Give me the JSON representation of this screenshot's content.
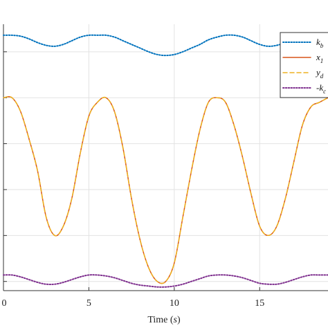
{
  "chart_data": {
    "type": "line",
    "title": "",
    "xlabel": "Time",
    "xlabel_unit": "s",
    "ylabel": "",
    "xlim": [
      0,
      19
    ],
    "ylim": [
      -1.1,
      1.8
    ],
    "x_ticks": [
      0,
      5,
      10,
      15
    ],
    "x_tick_labels": [
      "0",
      "5",
      "10",
      "15"
    ],
    "y_ticks": [
      -1,
      -0.5,
      0,
      0.5,
      1,
      1.5
    ],
    "grid": true,
    "legend_position": "top-right",
    "series": [
      {
        "name": "k_b",
        "label_main": "k",
        "label_sub": "b",
        "color": "#0072BD",
        "style": "dotted",
        "x": [
          0,
          0.5,
          1,
          1.5,
          2,
          2.5,
          3,
          3.5,
          4,
          4.5,
          5,
          5.5,
          6,
          6.5,
          7,
          7.5,
          8,
          8.5,
          9,
          9.5,
          10,
          10.5,
          11,
          11.5,
          12,
          12.5,
          13,
          13.5,
          14,
          14.5,
          15,
          15.5,
          16,
          16.5,
          17,
          17.5,
          18,
          18.5,
          19
        ],
        "values": [
          1.68,
          1.68,
          1.67,
          1.64,
          1.6,
          1.57,
          1.56,
          1.58,
          1.62,
          1.66,
          1.68,
          1.68,
          1.68,
          1.66,
          1.62,
          1.58,
          1.54,
          1.5,
          1.47,
          1.46,
          1.47,
          1.5,
          1.54,
          1.58,
          1.63,
          1.66,
          1.68,
          1.68,
          1.66,
          1.62,
          1.58,
          1.56,
          1.57,
          1.6,
          1.64,
          1.67,
          1.68,
          1.68,
          1.68
        ]
      },
      {
        "name": "x_1",
        "label_main": "x",
        "label_sub": "1",
        "color": "#D95319",
        "style": "solid",
        "x": [
          0,
          0.5,
          1,
          1.5,
          2,
          2.5,
          3,
          3.5,
          4,
          4.5,
          5,
          5.5,
          6,
          6.5,
          7,
          7.5,
          8,
          8.5,
          9,
          9.5,
          10,
          10.5,
          11,
          11.5,
          12,
          12.5,
          13,
          13.5,
          14,
          14.5,
          15,
          15.5,
          16,
          16.5,
          17,
          17.5,
          18,
          18.5,
          19
        ],
        "values": [
          1.0,
          1.0,
          0.85,
          0.55,
          0.2,
          -0.3,
          -0.5,
          -0.4,
          -0.1,
          0.4,
          0.8,
          0.95,
          1.0,
          0.85,
          0.45,
          -0.1,
          -0.55,
          -0.85,
          -1.0,
          -1.0,
          -0.8,
          -0.3,
          0.2,
          0.65,
          0.95,
          1.0,
          0.95,
          0.7,
          0.35,
          -0.05,
          -0.4,
          -0.5,
          -0.4,
          -0.1,
          0.3,
          0.7,
          0.9,
          0.95,
          1.0
        ]
      },
      {
        "name": "y_d",
        "label_main": "y",
        "label_sub": "d",
        "color": "#EDB120",
        "style": "dashed",
        "x": [
          0,
          0.5,
          1,
          1.5,
          2,
          2.5,
          3,
          3.5,
          4,
          4.5,
          5,
          5.5,
          6,
          6.5,
          7,
          7.5,
          8,
          8.5,
          9,
          9.5,
          10,
          10.5,
          11,
          11.5,
          12,
          12.5,
          13,
          13.5,
          14,
          14.5,
          15,
          15.5,
          16,
          16.5,
          17,
          17.5,
          18,
          18.5,
          19
        ],
        "values": [
          1.0,
          1.0,
          0.85,
          0.55,
          0.2,
          -0.3,
          -0.5,
          -0.4,
          -0.1,
          0.4,
          0.8,
          0.95,
          1.0,
          0.85,
          0.45,
          -0.1,
          -0.55,
          -0.85,
          -1.0,
          -1.0,
          -0.8,
          -0.3,
          0.2,
          0.65,
          0.95,
          1.0,
          0.95,
          0.7,
          0.35,
          -0.05,
          -0.4,
          -0.5,
          -0.4,
          -0.1,
          0.3,
          0.7,
          0.9,
          0.95,
          1.0
        ]
      },
      {
        "name": "-k_c",
        "label_main": "-k",
        "label_sub": "c",
        "color": "#7E2F8E",
        "style": "dotted",
        "x": [
          0,
          0.5,
          1,
          1.5,
          2,
          2.5,
          3,
          3.5,
          4,
          4.5,
          5,
          5.5,
          6,
          6.5,
          7,
          7.5,
          8,
          8.5,
          9,
          9.5,
          10,
          10.5,
          11,
          11.5,
          12,
          12.5,
          13,
          13.5,
          14,
          14.5,
          15,
          15.5,
          16,
          16.5,
          17,
          17.5,
          18,
          18.5,
          19
        ],
        "values": [
          -0.93,
          -0.93,
          -0.95,
          -0.98,
          -1.01,
          -1.03,
          -1.03,
          -1.01,
          -0.98,
          -0.95,
          -0.93,
          -0.93,
          -0.94,
          -0.96,
          -0.99,
          -1.02,
          -1.04,
          -1.05,
          -1.06,
          -1.06,
          -1.05,
          -1.03,
          -1.0,
          -0.97,
          -0.94,
          -0.93,
          -0.93,
          -0.94,
          -0.96,
          -0.99,
          -1.02,
          -1.03,
          -1.03,
          -1.01,
          -0.98,
          -0.95,
          -0.93,
          -0.93,
          -0.93
        ]
      }
    ]
  }
}
